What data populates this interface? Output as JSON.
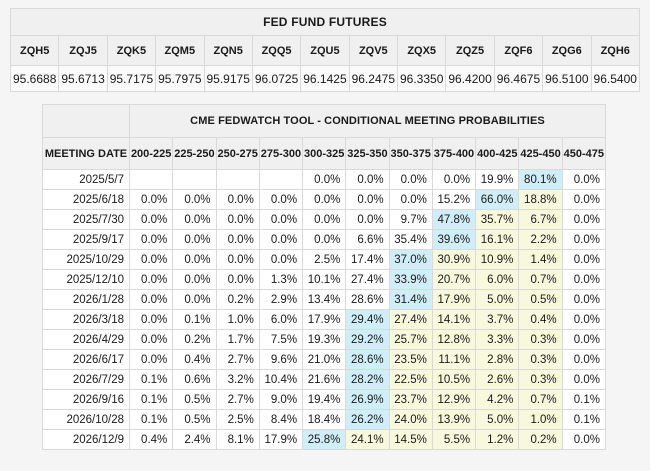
{
  "colors": {
    "page_bg": "#f5f5f5",
    "header_bg": "#f0f0f0",
    "highlight_blue": "#cfeef8",
    "highlight_yellow": "#f8f8dc"
  },
  "chart_data": [
    {
      "type": "table",
      "title": "FED FUND FUTURES",
      "columns": [
        "ZQH5",
        "ZQJ5",
        "ZQK5",
        "ZQM5",
        "ZQN5",
        "ZQQ5",
        "ZQU5",
        "ZQV5",
        "ZQX5",
        "ZQZ5",
        "ZQF6",
        "ZQG6",
        "ZQH6"
      ],
      "values": [
        "95.6688",
        "95.6713",
        "95.7175",
        "95.7975",
        "95.9175",
        "96.0725",
        "96.1425",
        "96.2475",
        "96.3350",
        "96.4200",
        "96.4675",
        "96.5100",
        "96.5400"
      ]
    },
    {
      "type": "table",
      "title": "CME FEDWATCH TOOL - CONDITIONAL MEETING PROBABILITIES",
      "date_column_header": "MEETING DATE",
      "rate_range_headers": [
        "200-225",
        "225-250",
        "250-275",
        "275-300",
        "300-325",
        "325-350",
        "350-375",
        "375-400",
        "400-425",
        "425-450",
        "450-475"
      ],
      "rows": [
        {
          "date": "2025/5/7",
          "values": [
            "",
            "",
            "",
            "",
            "0.0%",
            "0.0%",
            "0.0%",
            "0.0%",
            "19.9%",
            "80.1%",
            "0.0%"
          ],
          "styles": [
            "",
            "",
            "",
            "",
            "",
            "",
            "",
            "",
            "",
            "blue",
            ""
          ]
        },
        {
          "date": "2025/6/18",
          "values": [
            "0.0%",
            "0.0%",
            "0.0%",
            "0.0%",
            "0.0%",
            "0.0%",
            "0.0%",
            "15.2%",
            "66.0%",
            "18.8%",
            "0.0%"
          ],
          "styles": [
            "",
            "",
            "",
            "",
            "",
            "",
            "",
            "",
            "blue",
            "yellow",
            ""
          ]
        },
        {
          "date": "2025/7/30",
          "values": [
            "0.0%",
            "0.0%",
            "0.0%",
            "0.0%",
            "0.0%",
            "0.0%",
            "9.7%",
            "47.8%",
            "35.7%",
            "6.7%",
            "0.0%"
          ],
          "styles": [
            "",
            "",
            "",
            "",
            "",
            "",
            "",
            "blue",
            "yellow",
            "yellow",
            ""
          ]
        },
        {
          "date": "2025/9/17",
          "values": [
            "0.0%",
            "0.0%",
            "0.0%",
            "0.0%",
            "0.0%",
            "6.6%",
            "35.4%",
            "39.6%",
            "16.1%",
            "2.2%",
            "0.0%"
          ],
          "styles": [
            "",
            "",
            "",
            "",
            "",
            "",
            "",
            "blue",
            "yellow",
            "yellow",
            ""
          ]
        },
        {
          "date": "2025/10/29",
          "values": [
            "0.0%",
            "0.0%",
            "0.0%",
            "0.0%",
            "2.5%",
            "17.4%",
            "37.0%",
            "30.9%",
            "10.9%",
            "1.4%",
            "0.0%"
          ],
          "styles": [
            "",
            "",
            "",
            "",
            "",
            "",
            "blue",
            "yellow",
            "yellow",
            "yellow",
            ""
          ]
        },
        {
          "date": "2025/12/10",
          "values": [
            "0.0%",
            "0.0%",
            "0.0%",
            "1.3%",
            "10.1%",
            "27.4%",
            "33.9%",
            "20.7%",
            "6.0%",
            "0.7%",
            "0.0%"
          ],
          "styles": [
            "",
            "",
            "",
            "",
            "",
            "",
            "blue",
            "yellow",
            "yellow",
            "yellow",
            ""
          ]
        },
        {
          "date": "2026/1/28",
          "values": [
            "0.0%",
            "0.0%",
            "0.2%",
            "2.9%",
            "13.4%",
            "28.6%",
            "31.4%",
            "17.9%",
            "5.0%",
            "0.5%",
            "0.0%"
          ],
          "styles": [
            "",
            "",
            "",
            "",
            "",
            "",
            "blue",
            "yellow",
            "yellow",
            "yellow",
            ""
          ]
        },
        {
          "date": "2026/3/18",
          "values": [
            "0.0%",
            "0.1%",
            "1.0%",
            "6.0%",
            "17.9%",
            "29.4%",
            "27.4%",
            "14.1%",
            "3.7%",
            "0.4%",
            "0.0%"
          ],
          "styles": [
            "",
            "",
            "",
            "",
            "",
            "blue",
            "yellow",
            "yellow",
            "yellow",
            "yellow",
            ""
          ]
        },
        {
          "date": "2026/4/29",
          "values": [
            "0.0%",
            "0.2%",
            "1.7%",
            "7.5%",
            "19.3%",
            "29.2%",
            "25.7%",
            "12.8%",
            "3.3%",
            "0.3%",
            "0.0%"
          ],
          "styles": [
            "",
            "",
            "",
            "",
            "",
            "blue",
            "yellow",
            "yellow",
            "yellow",
            "yellow",
            ""
          ]
        },
        {
          "date": "2026/6/17",
          "values": [
            "0.0%",
            "0.4%",
            "2.7%",
            "9.6%",
            "21.0%",
            "28.6%",
            "23.5%",
            "11.1%",
            "2.8%",
            "0.3%",
            "0.0%"
          ],
          "styles": [
            "",
            "",
            "",
            "",
            "",
            "blue",
            "yellow",
            "yellow",
            "yellow",
            "yellow",
            ""
          ]
        },
        {
          "date": "2026/7/29",
          "values": [
            "0.1%",
            "0.6%",
            "3.2%",
            "10.4%",
            "21.6%",
            "28.2%",
            "22.5%",
            "10.5%",
            "2.6%",
            "0.3%",
            "0.0%"
          ],
          "styles": [
            "",
            "",
            "",
            "",
            "",
            "blue",
            "yellow",
            "yellow",
            "yellow",
            "yellow",
            ""
          ]
        },
        {
          "date": "2026/9/16",
          "values": [
            "0.1%",
            "0.5%",
            "2.7%",
            "9.0%",
            "19.4%",
            "26.9%",
            "23.7%",
            "12.9%",
            "4.2%",
            "0.7%",
            "0.1%"
          ],
          "styles": [
            "",
            "",
            "",
            "",
            "",
            "blue",
            "yellow",
            "yellow",
            "yellow",
            "yellow",
            ""
          ]
        },
        {
          "date": "2026/10/28",
          "values": [
            "0.1%",
            "0.5%",
            "2.5%",
            "8.4%",
            "18.4%",
            "26.2%",
            "24.0%",
            "13.9%",
            "5.0%",
            "1.0%",
            "0.1%"
          ],
          "styles": [
            "",
            "",
            "",
            "",
            "",
            "blue",
            "yellow",
            "yellow",
            "yellow",
            "yellow",
            ""
          ]
        },
        {
          "date": "2026/12/9",
          "values": [
            "0.4%",
            "2.4%",
            "8.1%",
            "17.9%",
            "25.8%",
            "24.1%",
            "14.5%",
            "5.5%",
            "1.2%",
            "0.2%",
            "0.0%"
          ],
          "styles": [
            "",
            "",
            "",
            "",
            "blue",
            "yellow",
            "yellow",
            "yellow",
            "yellow",
            "yellow",
            ""
          ]
        }
      ]
    }
  ]
}
